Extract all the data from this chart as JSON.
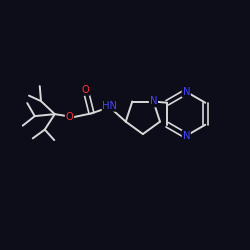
{
  "background": "#0d0d1a",
  "bond_color": "#d8d8d8",
  "N_color": "#4444ff",
  "O_color": "#ff3333",
  "lw": 1.4,
  "lw_double": 1.2,
  "fs": 7.2,
  "fig_w": 2.5,
  "fig_h": 2.5,
  "dpi": 100,
  "xlim": [
    0,
    10
  ],
  "ylim": [
    0,
    10
  ]
}
